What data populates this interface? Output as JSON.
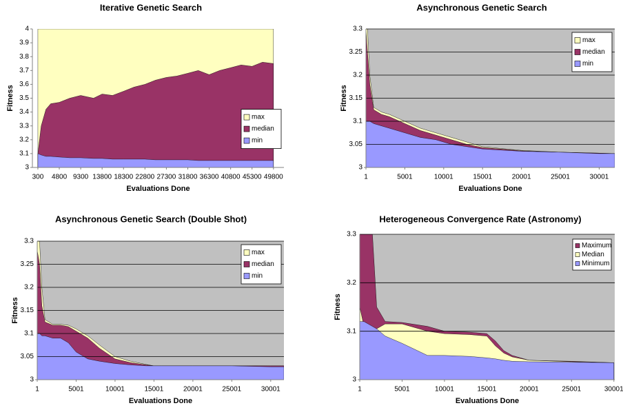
{
  "chart_data": [
    {
      "type": "area",
      "title": "Iterative Genetic Search",
      "xlabel": "Evaluations Done",
      "ylabel": "Fitness",
      "x": [
        300,
        1000,
        2000,
        3000,
        4800,
        7000,
        9300,
        12000,
        13800,
        16000,
        18300,
        20500,
        22800,
        25000,
        27300,
        29500,
        31800,
        34000,
        36300,
        38500,
        40800,
        43000,
        45300,
        47500,
        49800
      ],
      "series": [
        {
          "name": "max",
          "color": "#ffffc0",
          "values": [
            4,
            4,
            4,
            4,
            4,
            4,
            4,
            4,
            4,
            4,
            4,
            4,
            4,
            4,
            4,
            4,
            4,
            4,
            4,
            4,
            4,
            4,
            4,
            4,
            4
          ]
        },
        {
          "name": "median",
          "color": "#993366",
          "values": [
            3.1,
            3.3,
            3.42,
            3.46,
            3.47,
            3.5,
            3.52,
            3.5,
            3.53,
            3.52,
            3.55,
            3.58,
            3.6,
            3.63,
            3.65,
            3.66,
            3.68,
            3.7,
            3.67,
            3.7,
            3.72,
            3.74,
            3.73,
            3.76,
            3.75
          ]
        },
        {
          "name": "min",
          "color": "#9999ff",
          "values": [
            3.1,
            3.09,
            3.08,
            3.08,
            3.075,
            3.07,
            3.07,
            3.065,
            3.065,
            3.06,
            3.06,
            3.06,
            3.06,
            3.055,
            3.055,
            3.055,
            3.055,
            3.05,
            3.05,
            3.05,
            3.05,
            3.05,
            3.05,
            3.05,
            3.05
          ]
        }
      ],
      "xlim": [
        -850,
        52000
      ],
      "xticks": [
        300,
        4800,
        9300,
        13800,
        18300,
        22800,
        27300,
        31800,
        36300,
        40800,
        45300,
        49800
      ],
      "ylim": [
        3,
        4
      ],
      "yticks": [
        3,
        3.1,
        3.2,
        3.3,
        3.4,
        3.5,
        3.6,
        3.7,
        3.8,
        3.9,
        4
      ],
      "grid": false,
      "legend": "middle-right"
    },
    {
      "type": "area",
      "title": "Asynchronous Genetic Search",
      "xlabel": "Evaluations Done",
      "ylabel": "Fitness",
      "x": [
        1,
        200,
        500,
        1000,
        2000,
        3000,
        5001,
        7000,
        9000,
        11000,
        13000,
        15001,
        18000,
        20001,
        25001,
        30001,
        32000
      ],
      "series": [
        {
          "name": "max",
          "color": "#ffffc0",
          "values": [
            3.3,
            3.3,
            3.2,
            3.13,
            3.12,
            3.115,
            3.1,
            3.085,
            3.075,
            3.065,
            3.055,
            3.045,
            3.04,
            3.037,
            3.033,
            3.031,
            3.03
          ]
        },
        {
          "name": "median",
          "color": "#993366",
          "values": [
            3.3,
            3.25,
            3.18,
            3.125,
            3.115,
            3.11,
            3.095,
            3.08,
            3.07,
            3.06,
            3.05,
            3.043,
            3.039,
            3.036,
            3.033,
            3.031,
            3.03
          ]
        },
        {
          "name": "min",
          "color": "#9999ff",
          "values": [
            3.1,
            3.1,
            3.1,
            3.095,
            3.09,
            3.085,
            3.075,
            3.065,
            3.06,
            3.05,
            3.045,
            3.04,
            3.037,
            3.035,
            3.033,
            3.03,
            3.03
          ]
        }
      ],
      "xlim": [
        1,
        32000
      ],
      "xticks": [
        1,
        5001,
        10001,
        15001,
        20001,
        25001,
        30001
      ],
      "ylim": [
        3,
        3.3
      ],
      "yticks": [
        3,
        3.05,
        3.1,
        3.15,
        3.2,
        3.25,
        3.3
      ],
      "grid": true,
      "background": "#c0c0c0",
      "legend": "top-right"
    },
    {
      "type": "area",
      "title": "Asynchronous Genetic Search (Double Shot)",
      "xlabel": "Evaluations Done",
      "ylabel": "Fitness",
      "x": [
        1,
        300,
        600,
        1000,
        2000,
        3000,
        4000,
        5001,
        6500,
        8000,
        10001,
        12000,
        14000,
        15001,
        16000,
        20001,
        25001,
        30001,
        31700
      ],
      "series": [
        {
          "name": "max",
          "color": "#ffffc0",
          "values": [
            3.3,
            3.3,
            3.2,
            3.13,
            3.12,
            3.12,
            3.118,
            3.11,
            3.095,
            3.075,
            3.05,
            3.04,
            3.033,
            3.03,
            3.03,
            3.03,
            3.03,
            3.03,
            3.03
          ]
        },
        {
          "name": "median",
          "color": "#993366",
          "values": [
            3.28,
            3.25,
            3.16,
            3.125,
            3.118,
            3.118,
            3.115,
            3.105,
            3.09,
            3.068,
            3.045,
            3.037,
            3.032,
            3.03,
            3.03,
            3.03,
            3.03,
            3.03,
            3.03
          ]
        },
        {
          "name": "min",
          "color": "#9999ff",
          "values": [
            3.1,
            3.1,
            3.095,
            3.095,
            3.09,
            3.09,
            3.08,
            3.06,
            3.045,
            3.04,
            3.035,
            3.032,
            3.03,
            3.03,
            3.03,
            3.03,
            3.03,
            3.028,
            3.028
          ]
        }
      ],
      "xlim": [
        1,
        31700
      ],
      "xticks": [
        1,
        5001,
        10001,
        15001,
        20001,
        25001,
        30001
      ],
      "ylim": [
        3,
        3.3
      ],
      "yticks": [
        3,
        3.05,
        3.1,
        3.15,
        3.2,
        3.25,
        3.3
      ],
      "grid": true,
      "background": "#c0c0c0",
      "legend": "top-right"
    },
    {
      "type": "area",
      "title": "Heterogeneous Convergence Rate (Astronomy)",
      "xlabel": "Evaluations Done",
      "ylabel": "Fitness",
      "x": [
        1,
        500,
        1000,
        1500,
        2000,
        3000,
        5001,
        8000,
        10001,
        13000,
        15001,
        16000,
        17000,
        18000,
        20001,
        25001,
        30001
      ],
      "series": [
        {
          "name": "Maximum",
          "color": "#993366",
          "values": [
            3.3,
            3.3,
            3.3,
            3.3,
            3.15,
            3.12,
            3.118,
            3.11,
            3.1,
            3.098,
            3.095,
            3.08,
            3.06,
            3.05,
            3.04,
            3.038,
            3.035
          ]
        },
        {
          "name": "Median",
          "color": "#ffffc0",
          "values": [
            3.15,
            3.11,
            3.1,
            3.1,
            3.105,
            3.115,
            3.115,
            3.1,
            3.095,
            3.093,
            3.09,
            3.07,
            3.055,
            3.047,
            3.04,
            3.037,
            3.035
          ]
        },
        {
          "name": "Minimum",
          "color": "#9999ff",
          "values": [
            3.12,
            3.12,
            3.115,
            3.11,
            3.105,
            3.09,
            3.075,
            3.05,
            3.05,
            3.048,
            3.045,
            3.043,
            3.04,
            3.038,
            3.037,
            3.036,
            3.035
          ]
        }
      ],
      "xlim": [
        1,
        30100
      ],
      "xticks": [
        1,
        5001,
        10001,
        15001,
        20001,
        25001,
        30001
      ],
      "ylim": [
        3,
        3.3
      ],
      "yticks": [
        3,
        3.1,
        3.2,
        3.3
      ],
      "grid": true,
      "background": "#c0c0c0",
      "legend": "top-right-small"
    }
  ]
}
